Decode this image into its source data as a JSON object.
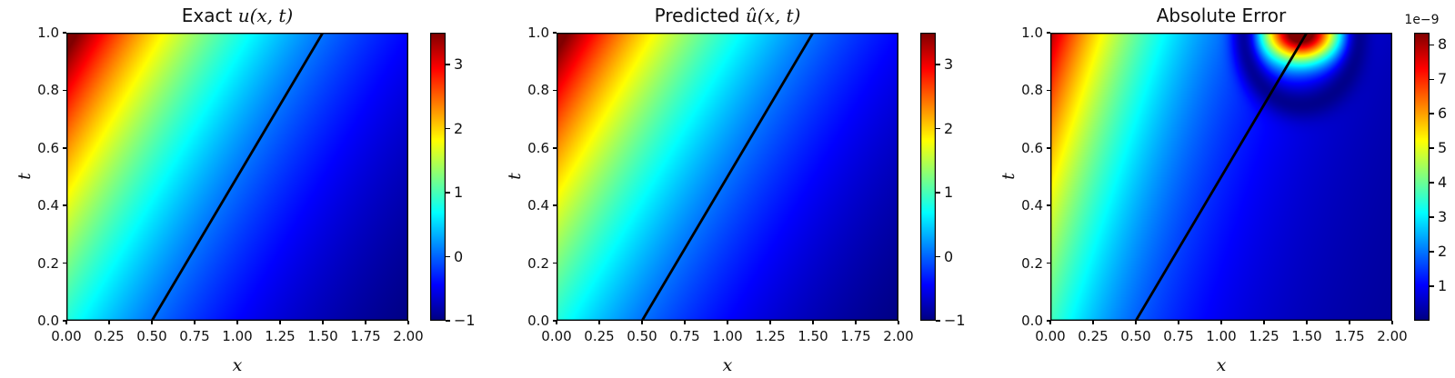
{
  "figure": {
    "background": "#ffffff",
    "colormap": "jet",
    "line_color": "#000000"
  },
  "chart_data": [
    {
      "type": "heatmap",
      "title_plain": "Exact ",
      "title_math": "u(x, t)",
      "xlabel": "x",
      "ylabel": "t",
      "xlim": [
        0,
        2
      ],
      "tlim": [
        0,
        1
      ],
      "x_tick_labels": [
        "0.00",
        "0.25",
        "0.50",
        "0.75",
        "1.00",
        "1.25",
        "1.50",
        "1.75",
        "2.00"
      ],
      "x_tick_values": [
        0,
        0.25,
        0.5,
        0.75,
        1,
        1.25,
        1.5,
        1.75,
        2
      ],
      "y_tick_labels": [
        "1.0",
        "0.8",
        "0.6",
        "0.4",
        "0.2",
        "0.0"
      ],
      "y_tick_values": [
        1,
        0.8,
        0.6,
        0.4,
        0.2,
        0
      ],
      "colormap": "jet",
      "vmin": -1.0,
      "vmax": 3.5,
      "colorbar": {
        "tick_labels": [
          "3",
          "2",
          "1",
          "0",
          "−1"
        ],
        "tick_values": [
          3,
          2,
          1,
          0,
          -1
        ],
        "scale_label": ""
      },
      "overlay_line": {
        "x": [
          0.5,
          1.5
        ],
        "t": [
          0,
          1
        ],
        "color": "#000000"
      },
      "field": {
        "type": "exp_travel",
        "a": 2.24,
        "k": 0.84,
        "c": -1.4
      },
      "samples": {
        "x": [
          0,
          0.25,
          0.5,
          0.75,
          1,
          1.25,
          1.5,
          1.75,
          2
        ],
        "t": [
          0,
          0.25,
          0.5,
          0.75,
          1
        ],
        "values": [
          [
            0.84,
            0.42,
            0.07,
            -0.21,
            -0.43,
            -0.62,
            -0.76,
            -0.88,
            -0.98
          ],
          [
            1.36,
            0.84,
            0.42,
            0.07,
            -0.21,
            -0.43,
            -0.62,
            -0.76,
            -0.88
          ],
          [
            2.01,
            1.36,
            0.84,
            0.42,
            0.07,
            -0.21,
            -0.43,
            -0.62,
            -0.76
          ],
          [
            2.81,
            2.01,
            1.36,
            0.84,
            0.42,
            0.07,
            -0.21,
            -0.43,
            -0.62
          ],
          [
            3.79,
            2.81,
            2.01,
            1.36,
            0.84,
            0.42,
            0.07,
            -0.21,
            -0.43
          ]
        ]
      }
    },
    {
      "type": "heatmap",
      "title_plain": "Predicted ",
      "title_math": "û(x, t)",
      "xlabel": "x",
      "ylabel": "t",
      "xlim": [
        0,
        2
      ],
      "tlim": [
        0,
        1
      ],
      "x_tick_labels": [
        "0.00",
        "0.25",
        "0.50",
        "0.75",
        "1.00",
        "1.25",
        "1.50",
        "1.75",
        "2.00"
      ],
      "x_tick_values": [
        0,
        0.25,
        0.5,
        0.75,
        1,
        1.25,
        1.5,
        1.75,
        2
      ],
      "y_tick_labels": [
        "1.0",
        "0.8",
        "0.6",
        "0.4",
        "0.2",
        "0.0"
      ],
      "y_tick_values": [
        1,
        0.8,
        0.6,
        0.4,
        0.2,
        0
      ],
      "colormap": "jet",
      "vmin": -1.0,
      "vmax": 3.5,
      "colorbar": {
        "tick_labels": [
          "3",
          "2",
          "1",
          "0",
          "−1"
        ],
        "tick_values": [
          3,
          2,
          1,
          0,
          -1
        ],
        "scale_label": ""
      },
      "overlay_line": {
        "x": [
          0.5,
          1.5
        ],
        "t": [
          0,
          1
        ],
        "color": "#000000"
      },
      "field": {
        "type": "exp_travel",
        "a": 2.24,
        "k": 0.84,
        "c": -1.4
      },
      "samples": {
        "x": [
          0,
          0.25,
          0.5,
          0.75,
          1,
          1.25,
          1.5,
          1.75,
          2
        ],
        "t": [
          0,
          0.25,
          0.5,
          0.75,
          1
        ],
        "values": [
          [
            0.84,
            0.42,
            0.07,
            -0.21,
            -0.43,
            -0.62,
            -0.76,
            -0.88,
            -0.98
          ],
          [
            1.36,
            0.84,
            0.42,
            0.07,
            -0.21,
            -0.43,
            -0.62,
            -0.76,
            -0.88
          ],
          [
            2.01,
            1.36,
            0.84,
            0.42,
            0.07,
            -0.21,
            -0.43,
            -0.62,
            -0.76
          ],
          [
            2.81,
            2.01,
            1.36,
            0.84,
            0.42,
            0.07,
            -0.21,
            -0.43,
            -0.62
          ],
          [
            3.79,
            2.81,
            2.01,
            1.36,
            0.84,
            0.42,
            0.07,
            -0.21,
            -0.43
          ]
        ]
      }
    },
    {
      "type": "heatmap",
      "title_plain": "Absolute Error",
      "title_math": "",
      "xlabel": "x",
      "ylabel": "t",
      "xlim": [
        0,
        2
      ],
      "tlim": [
        0,
        1
      ],
      "x_tick_labels": [
        "0.00",
        "0.25",
        "0.50",
        "0.75",
        "1.00",
        "1.25",
        "1.50",
        "1.75",
        "2.00"
      ],
      "x_tick_values": [
        0,
        0.25,
        0.5,
        0.75,
        1,
        1.25,
        1.5,
        1.75,
        2
      ],
      "y_tick_labels": [
        "1.0",
        "0.8",
        "0.6",
        "0.4",
        "0.2",
        "0.0"
      ],
      "y_tick_values": [
        1,
        0.8,
        0.6,
        0.4,
        0.2,
        0
      ],
      "colormap": "jet",
      "vmin": 0,
      "vmax": 8.35,
      "value_unit": "1e-9",
      "colorbar": {
        "tick_labels": [
          "8",
          "7",
          "6",
          "5",
          "4",
          "3",
          "2",
          "1"
        ],
        "tick_values": [
          8,
          7,
          6,
          5,
          4,
          3,
          2,
          1
        ],
        "scale_label": "1e−9"
      },
      "overlay_line": {
        "x": [
          0.5,
          1.5
        ],
        "t": [
          0,
          1
        ],
        "color": "#000000"
      },
      "field": {
        "type": "error_model",
        "base_amp": 3.7,
        "base_decay": 1.4,
        "base_speed": 0.55,
        "core_amp": 8.2,
        "core_x": 1.47,
        "core_t": 1.0,
        "core_sx": 0.045,
        "core_st": 0.01,
        "ring_radius": 0.34,
        "ring_width": 0.006,
        "ring_tweight": 1.85,
        "ring_depth": 0.88,
        "cap": 8.35,
        "floor": 0.05
      },
      "samples": {
        "x": [
          0,
          0.25,
          0.5,
          0.75,
          1,
          1.25,
          1.5,
          1.75,
          2
        ],
        "t": [
          0,
          0.25,
          0.5,
          0.75,
          1
        ],
        "values": [
          [
            3.7,
            2.61,
            1.84,
            1.3,
            0.91,
            0.64,
            0.45,
            0.32,
            0.23
          ],
          [
            4.49,
            3.16,
            2.23,
            1.57,
            1.11,
            0.78,
            0.55,
            0.39,
            0.27
          ],
          [
            5.44,
            3.83,
            2.7,
            1.9,
            1.34,
            0.94,
            0.67,
            0.47,
            0.33
          ],
          [
            6.59,
            4.65,
            3.27,
            2.31,
            1.63,
            0.65,
            0.1,
            0.48,
            0.4
          ],
          [
            7.99,
            5.63,
            3.97,
            2.8,
            1.92,
            3.86,
            8.35,
            1.1,
            0.51
          ]
        ]
      }
    }
  ]
}
